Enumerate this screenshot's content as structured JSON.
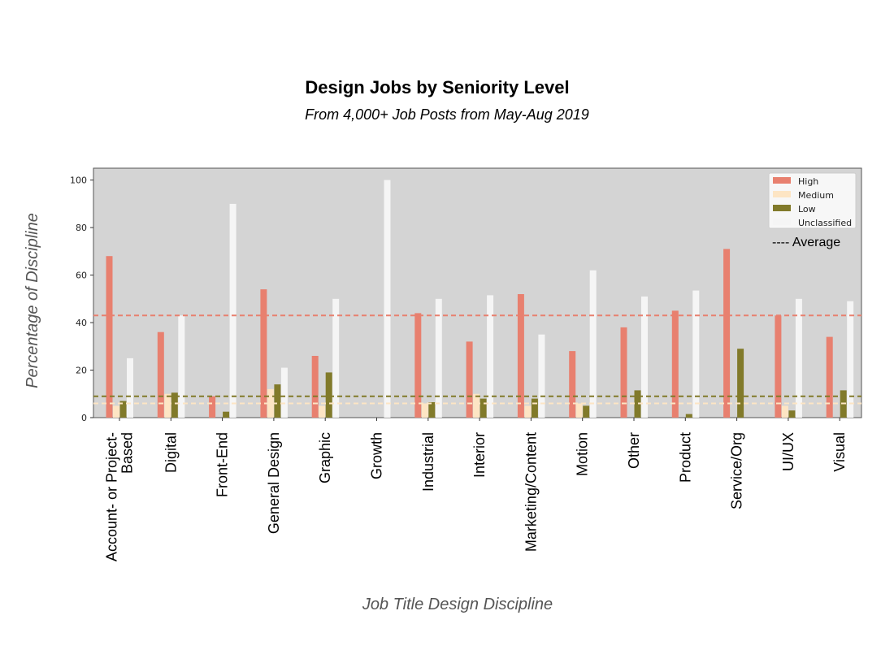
{
  "chart_data": {
    "type": "bar",
    "title": "Design Jobs by Seniority Level",
    "subtitle": "From 4,000+ Job Posts from May-Aug 2019",
    "xlabel": "Job Title Design Discipline",
    "ylabel": "Percentage of Discipline",
    "ylim": [
      0,
      105
    ],
    "yticks": [
      "0",
      "20",
      "40",
      "60",
      "80",
      "100"
    ],
    "grid": false,
    "legend_position": "top-right",
    "categories": [
      [
        "Account- or Project-",
        "Based"
      ],
      [
        "Digital"
      ],
      [
        "Front-End"
      ],
      [
        "General Design"
      ],
      [
        "Graphic"
      ],
      [
        "Growth"
      ],
      [
        "Industrial"
      ],
      [
        "Interior"
      ],
      [
        "Marketing/Content"
      ],
      [
        "Motion"
      ],
      [
        "Other"
      ],
      [
        "Product"
      ],
      [
        "Service/Org"
      ],
      [
        "UI/UX"
      ],
      [
        "Visual"
      ]
    ],
    "series": [
      {
        "name": "High",
        "color": "#e8806f",
        "values": [
          68,
          36,
          9,
          54,
          26,
          0,
          44,
          32,
          52,
          28,
          38,
          45,
          71,
          43,
          34
        ]
      },
      {
        "name": "Medium",
        "color": "#fde5c4",
        "values": [
          5,
          10,
          0,
          12,
          5,
          0,
          6,
          10,
          5,
          6,
          0,
          0,
          0,
          5,
          0
        ]
      },
      {
        "name": "Low",
        "color": "#817a2a",
        "values": [
          7,
          10.5,
          2.5,
          14,
          19,
          0,
          6.5,
          8,
          8,
          5,
          11.5,
          1.5,
          29,
          3,
          11.5
        ]
      },
      {
        "name": "Unclassified",
        "color": "#f5f5f5",
        "values": [
          25,
          43,
          90,
          21,
          50,
          100,
          50,
          51.5,
          35,
          62,
          51,
          53.5,
          0,
          50,
          49
        ]
      }
    ],
    "averages": [
      {
        "series": "High",
        "value": 43,
        "color": "#e8806f"
      },
      {
        "series": "Medium",
        "value": 6,
        "color": "#fde5c4"
      },
      {
        "series": "Low",
        "value": 9,
        "color": "#817a2a"
      }
    ],
    "average_note": "---- Average",
    "colors": {
      "plot_background": "#d4d4d4",
      "legend_background": "#f7f7f7"
    }
  }
}
